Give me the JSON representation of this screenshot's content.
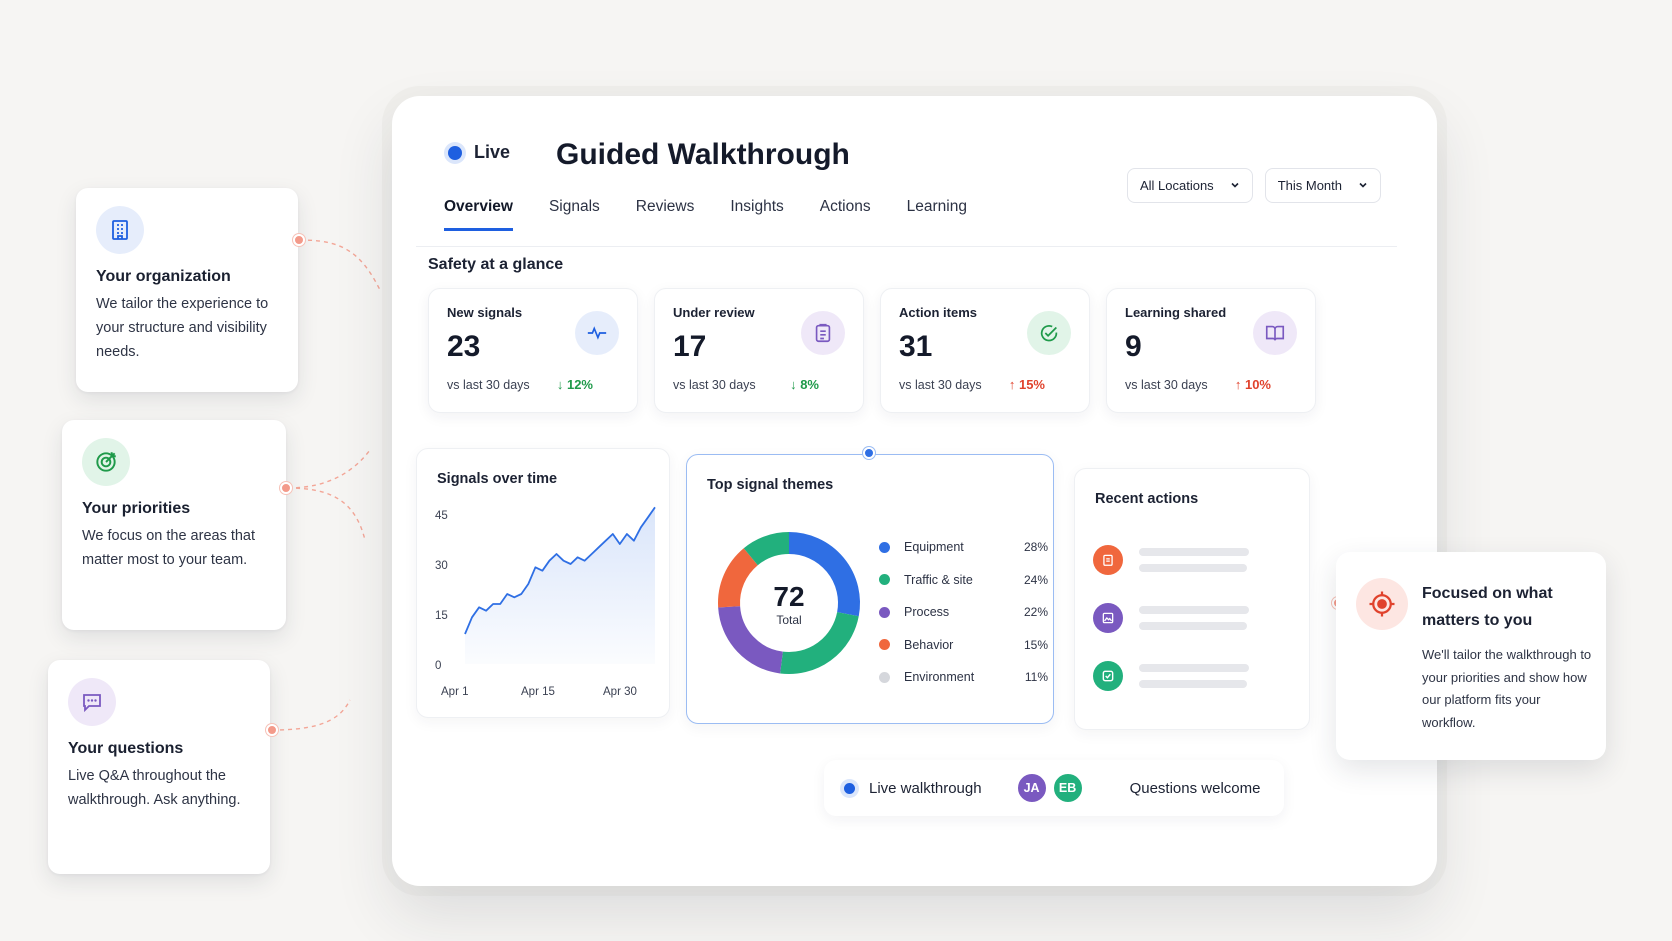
{
  "side_cards": [
    {
      "title": "Your organization",
      "text": "We tailor the experience to your structure and visibility needs.",
      "icon": "building-icon"
    },
    {
      "title": "Your priorities",
      "text": "We focus on the areas that matter most to your team.",
      "icon": "target-check-icon"
    },
    {
      "title": "Your questions",
      "text": "Live Q&A throughout the walkthrough. Ask anything.",
      "icon": "chat-bubble-icon"
    }
  ],
  "header": {
    "live_label": "Live",
    "title": "Guided Walkthrough",
    "tabs": [
      "Overview",
      "Signals",
      "Reviews",
      "Insights",
      "Actions",
      "Learning"
    ],
    "active_tab": "Overview",
    "location_select": "All Locations",
    "period_select": "This Month"
  },
  "section_title": "Safety at a glance",
  "stats": [
    {
      "label": "New signals",
      "value": "23",
      "sub": "vs last 30 days",
      "delta": "12%",
      "direction": "down",
      "icon": "pulse-icon"
    },
    {
      "label": "Under review",
      "value": "17",
      "sub": "vs last 30 days",
      "delta": "8%",
      "direction": "down",
      "icon": "clipboard-icon"
    },
    {
      "label": "Action items",
      "value": "31",
      "sub": "vs last 30 days",
      "delta": "15%",
      "direction": "up",
      "icon": "check-circle-icon"
    },
    {
      "label": "Learning shared",
      "value": "9",
      "sub": "vs last 30 days",
      "delta": "10%",
      "direction": "up",
      "icon": "book-icon"
    }
  ],
  "colors": {
    "accent": "#1e5fe0",
    "down": "#1f9a4a",
    "up": "#e0422c",
    "connector": "#f39a8a"
  },
  "line_chart": {
    "title": "Signals over time",
    "y_ticks": [
      "45",
      "30",
      "15",
      "0"
    ],
    "x_ticks": [
      "Apr 1",
      "Apr 15",
      "Apr 30"
    ]
  },
  "donut": {
    "title": "Top signal themes",
    "total_value": "72",
    "total_label": "Total"
  },
  "chart_data": [
    {
      "type": "line",
      "title": "Signals over time",
      "x_ticks": [
        "Apr 1",
        "Apr 15",
        "Apr 30"
      ],
      "ylim": [
        0,
        45
      ],
      "grid": false,
      "series": [
        {
          "values": [
            9,
            14,
            17,
            16,
            18,
            18,
            21,
            20,
            21,
            24,
            29,
            28,
            31,
            33,
            31,
            30,
            32,
            31,
            33,
            35,
            37,
            39,
            36,
            39,
            37,
            41,
            44,
            47
          ]
        }
      ]
    },
    {
      "type": "pie",
      "title": "Top signal themes",
      "categories": [
        "Equipment",
        "Traffic & site",
        "Process",
        "Behavior",
        "Environment"
      ],
      "values": [
        28,
        24,
        22,
        15,
        11
      ],
      "labels": [
        "28%",
        "24%",
        "22%",
        "15%",
        "11%"
      ],
      "colors": [
        "#2f6fe4",
        "#22b07d",
        "#7a59c0",
        "#f0673d",
        "#d5d7dc"
      ]
    }
  ],
  "recent_actions": {
    "title": "Recent actions",
    "items": [
      {
        "icon": "clipboard-icon",
        "color": "#f0673d"
      },
      {
        "icon": "image-icon",
        "color": "#7a59c0"
      },
      {
        "icon": "check-square-icon",
        "color": "#22b07d"
      }
    ]
  },
  "bottom_bar": {
    "live_label": "Live walkthrough",
    "avatars": [
      {
        "initials": "JA",
        "color": "#7a59c0"
      },
      {
        "initials": "EB",
        "color": "#22b07d"
      }
    ],
    "questions_label": "Questions welcome"
  },
  "focus_card": {
    "title": "Focused on what matters to you",
    "text": "We'll tailor the walkthrough to your priorities and show how our platform fits your workflow."
  }
}
